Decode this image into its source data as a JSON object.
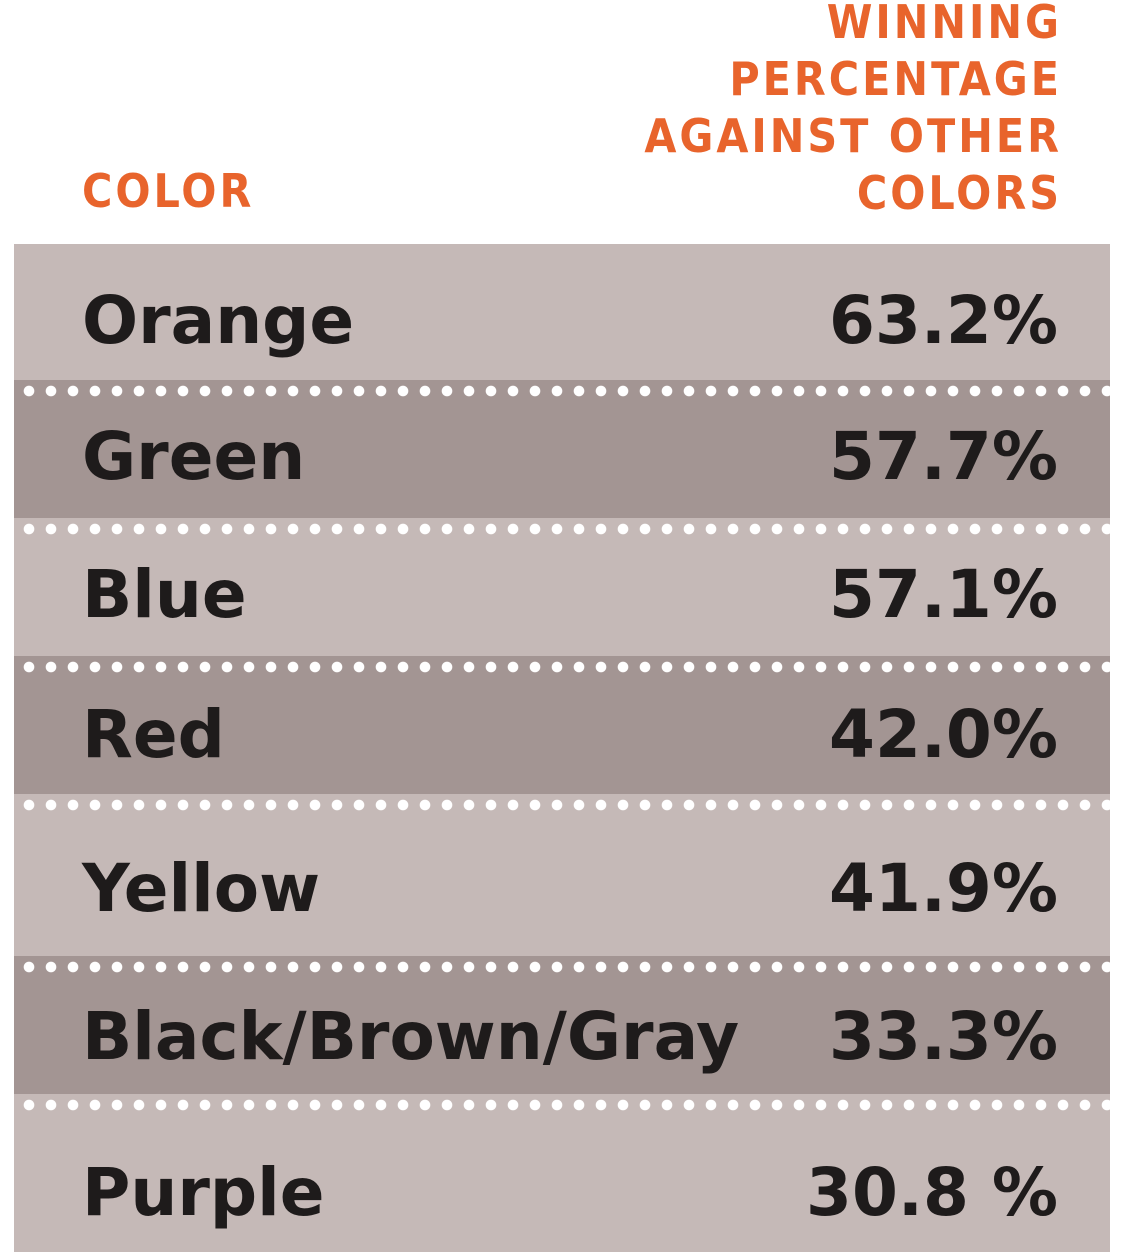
{
  "chart_data": {
    "type": "table",
    "columns": [
      "COLOR",
      "WINNING PERCENTAGE AGAINST OTHER COLORS"
    ],
    "header_lines": [
      "WINNING",
      "PERCENTAGE",
      "AGAINST OTHER",
      "COLORS"
    ],
    "categories": [
      "Orange",
      "Green",
      "Blue",
      "Red",
      "Yellow",
      "Black/Brown/Gray",
      "Purple"
    ],
    "values": [
      63.2,
      57.7,
      57.1,
      42.0,
      41.9,
      33.3,
      30.8
    ],
    "rows": [
      {
        "color": "Orange",
        "pct": "63.2%"
      },
      {
        "color": "Green",
        "pct": "57.7%"
      },
      {
        "color": "Blue",
        "pct": "57.1%"
      },
      {
        "color": "Red",
        "pct": "42.0%"
      },
      {
        "color": "Yellow",
        "pct": "41.9%"
      },
      {
        "color": "Black/Brown/Gray",
        "pct": "33.3%"
      },
      {
        "color": "Purple",
        "pct": "30.8 %"
      }
    ]
  },
  "colors": {
    "header_text": "#e8642c",
    "row_light": "#c5b9b7",
    "row_dark": "#a39593",
    "row_text": "#1e1b1b",
    "divider_dots": "#ffffff"
  }
}
